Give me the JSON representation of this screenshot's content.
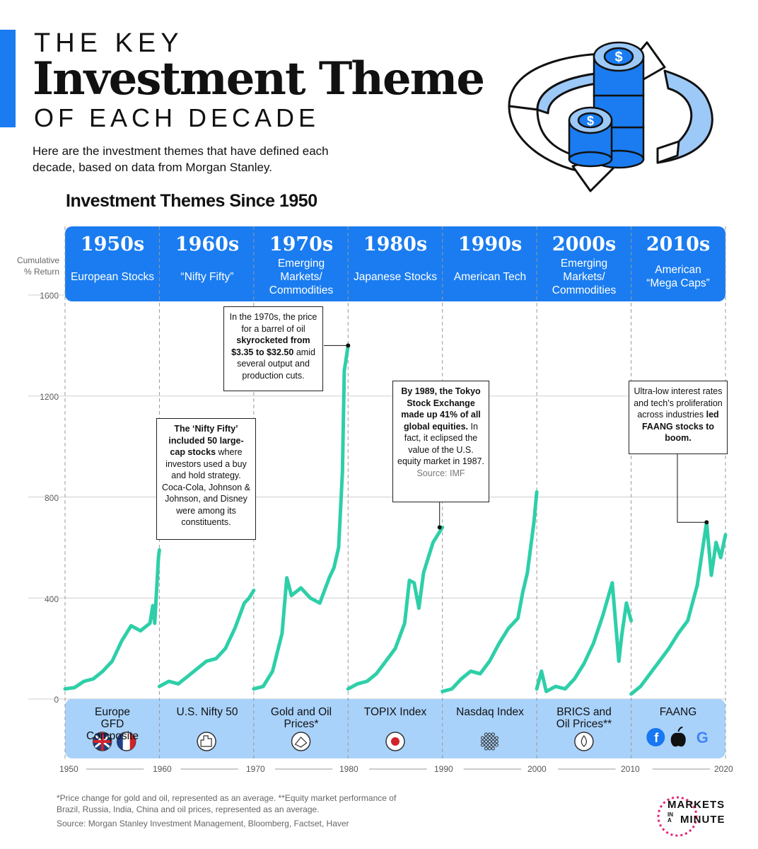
{
  "header": {
    "title_line1": "THE KEY",
    "title_line2": "Investment Theme",
    "title_line3": "OF EACH DECADE",
    "subtitle": "Here are the investment themes that have defined each decade, based on data from Morgan Stanley."
  },
  "chart_data": {
    "type": "line",
    "title": "Investment Themes Since 1950",
    "ylabel": "Cumulative % Return",
    "ylim": [
      0,
      1600
    ],
    "yticks": [
      "1600",
      "1200",
      "800",
      "400",
      "0"
    ],
    "xticks": [
      "1950",
      "1960",
      "1970",
      "1980",
      "1990",
      "2000",
      "2010",
      "2020"
    ],
    "grid": true,
    "colors": {
      "line": "#2ecfa8",
      "header": "#1a7cf0",
      "footer": "#a9d2fb"
    },
    "decades": [
      {
        "decade": "1950s",
        "theme": "European Stocks",
        "index": "Europe GFD Composite",
        "icons": [
          "uk-flag-icon",
          "france-flag-icon"
        ],
        "points": [
          [
            1950,
            40
          ],
          [
            1951,
            45
          ],
          [
            1952,
            70
          ],
          [
            1953,
            80
          ],
          [
            1954,
            110
          ],
          [
            1955,
            150
          ],
          [
            1956,
            230
          ],
          [
            1957,
            290
          ],
          [
            1958,
            270
          ],
          [
            1959,
            300
          ],
          [
            1959.3,
            370
          ],
          [
            1959.5,
            300
          ],
          [
            1959.9,
            560
          ],
          [
            1960,
            590
          ]
        ]
      },
      {
        "decade": "1960s",
        "theme": "“Nifty Fifty”",
        "index": "U.S. Nifty 50",
        "icons": [
          "skyline-icon"
        ],
        "points": [
          [
            1960,
            50
          ],
          [
            1961,
            70
          ],
          [
            1962,
            60
          ],
          [
            1963,
            90
          ],
          [
            1964,
            120
          ],
          [
            1965,
            150
          ],
          [
            1966,
            160
          ],
          [
            1967,
            200
          ],
          [
            1968,
            280
          ],
          [
            1969,
            380
          ],
          [
            1969.5,
            400
          ],
          [
            1970,
            430
          ]
        ]
      },
      {
        "decade": "1970s",
        "theme": "Emerging Markets/ Commodities",
        "index": "Gold and Oil Prices*",
        "icons": [
          "gold-bars-icon"
        ],
        "points": [
          [
            1970,
            40
          ],
          [
            1971,
            50
          ],
          [
            1972,
            110
          ],
          [
            1973,
            260
          ],
          [
            1973.5,
            480
          ],
          [
            1974,
            410
          ],
          [
            1975,
            440
          ],
          [
            1976,
            400
          ],
          [
            1977,
            380
          ],
          [
            1978,
            480
          ],
          [
            1978.5,
            520
          ],
          [
            1979,
            600
          ],
          [
            1979.4,
            900
          ],
          [
            1979.6,
            1300
          ],
          [
            1980,
            1400
          ]
        ]
      },
      {
        "decade": "1980s",
        "theme": "Japanese Stocks",
        "index": "TOPIX Index",
        "icons": [
          "japan-flag-icon"
        ],
        "points": [
          [
            1980,
            40
          ],
          [
            1981,
            60
          ],
          [
            1982,
            70
          ],
          [
            1983,
            100
          ],
          [
            1984,
            150
          ],
          [
            1985,
            200
          ],
          [
            1986,
            300
          ],
          [
            1986.5,
            470
          ],
          [
            1987,
            460
          ],
          [
            1987.5,
            360
          ],
          [
            1988,
            500
          ],
          [
            1989,
            620
          ],
          [
            1990,
            680
          ]
        ]
      },
      {
        "decade": "1990s",
        "theme": "American Tech",
        "index": "Nasdaq Index",
        "icons": [
          "network-icon"
        ],
        "points": [
          [
            1990,
            30
          ],
          [
            1991,
            40
          ],
          [
            1992,
            80
          ],
          [
            1993,
            110
          ],
          [
            1994,
            100
          ],
          [
            1995,
            150
          ],
          [
            1996,
            220
          ],
          [
            1997,
            280
          ],
          [
            1998,
            320
          ],
          [
            1998.5,
            420
          ],
          [
            1999,
            500
          ],
          [
            1999.7,
            700
          ],
          [
            2000,
            820
          ]
        ]
      },
      {
        "decade": "2000s",
        "theme": "Emerging Markets/ Commodities",
        "index": "BRICS and Oil Prices**",
        "icons": [
          "oil-drop-icon"
        ],
        "points": [
          [
            2000,
            40
          ],
          [
            2000.5,
            110
          ],
          [
            2001,
            30
          ],
          [
            2002,
            50
          ],
          [
            2003,
            40
          ],
          [
            2004,
            80
          ],
          [
            2005,
            140
          ],
          [
            2006,
            220
          ],
          [
            2007,
            330
          ],
          [
            2008,
            460
          ],
          [
            2008.7,
            150
          ],
          [
            2009,
            250
          ],
          [
            2009.5,
            380
          ],
          [
            2010,
            310
          ]
        ]
      },
      {
        "decade": "2010s",
        "theme": "American “Mega Caps”",
        "index": "FAANG",
        "icons": [
          "facebook-icon",
          "apple-icon",
          "google-icon"
        ],
        "points": [
          [
            2010,
            20
          ],
          [
            2011,
            50
          ],
          [
            2012,
            100
          ],
          [
            2013,
            150
          ],
          [
            2014,
            200
          ],
          [
            2015,
            260
          ],
          [
            2016,
            310
          ],
          [
            2017,
            450
          ],
          [
            2018,
            700
          ],
          [
            2018.5,
            490
          ],
          [
            2019,
            620
          ],
          [
            2019.5,
            560
          ],
          [
            2020,
            650
          ]
        ]
      }
    ]
  },
  "callouts": {
    "c1960": {
      "pre": "",
      "bold": "The ‘Nifty Fifty’ included 50 large-cap stocks",
      "post": " where investors used a buy and hold strategy. Coca-Cola, Johnson & Johnson, and Disney were among its constituents."
    },
    "c1970": {
      "pre": "In the 1970s, the price for a barrel of oil ",
      "bold": "skyrocketed from $3.35 to $32.50",
      "post": " amid several output and production cuts."
    },
    "c1980": {
      "pre": "",
      "bold": "By 1989, the Tokyo Stock Exchange made up 41% of all global equities.",
      "post": " In fact, it eclipsed the value of the U.S. equity market in 1987.",
      "source": "Source: IMF"
    },
    "c2010": {
      "pre": "Ultra-low interest rates and tech’s proliferation across industries ",
      "bold": "led FAANG stocks to boom.",
      "post": ""
    }
  },
  "footer": {
    "footnote": "*Price change for gold and oil, represented as an average. **Equity market performance of Brazil, Russia, India, China and oil prices, represented as an average.",
    "source": "Source: Morgan Stanley Investment Management, Bloomberg, Factset, Haver",
    "logo_line1": "MARKETS",
    "logo_line2": "IN A",
    "logo_line3": "MINUTE"
  }
}
